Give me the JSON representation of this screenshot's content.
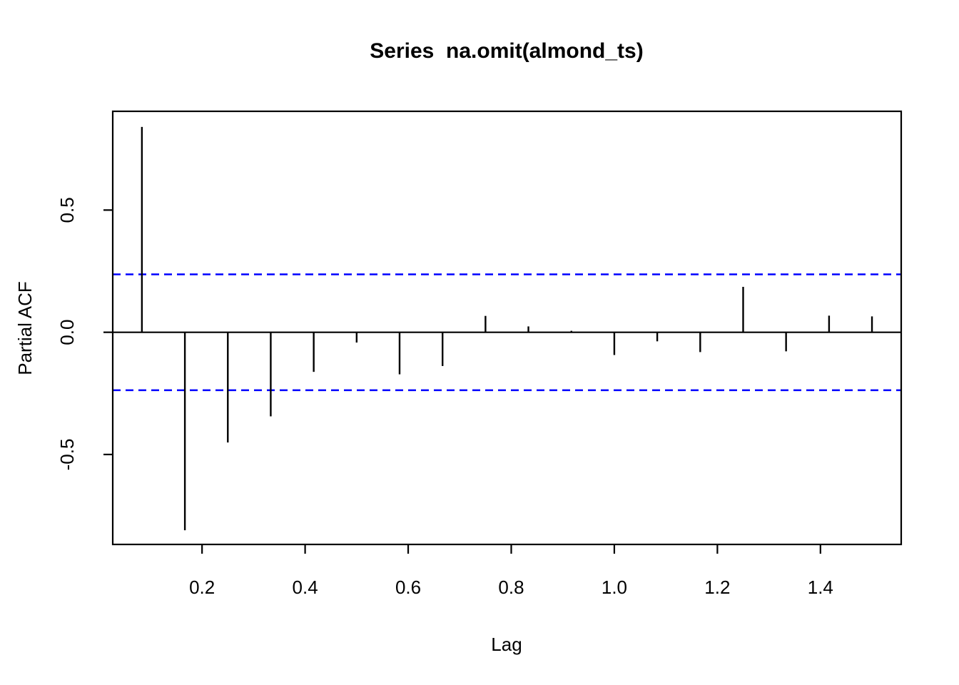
{
  "chart_data": {
    "type": "bar",
    "subtype": "pacf-stem",
    "title": "Series  na.omit(almond_ts)",
    "xlabel": "Lag",
    "ylabel": "Partial ACF",
    "x": [
      0.0833,
      0.1667,
      0.25,
      0.3333,
      0.4167,
      0.5,
      0.5833,
      0.6667,
      0.75,
      0.8333,
      0.9167,
      1.0,
      1.0833,
      1.1667,
      1.25,
      1.3333,
      1.4167,
      1.5
    ],
    "values": [
      0.84,
      -0.81,
      -0.451,
      -0.344,
      -0.162,
      -0.042,
      -0.172,
      -0.138,
      0.067,
      0.024,
      0.006,
      -0.093,
      -0.037,
      -0.081,
      0.186,
      -0.078,
      0.068,
      0.065
    ],
    "confidence_level": 0.237,
    "confidence_style": "dashed",
    "xlim": [
      0.0267,
      1.5567
    ],
    "ylim": [
      -0.868,
      0.904
    ],
    "xticks": {
      "values": [
        0.2,
        0.4,
        0.6,
        0.8,
        1.0,
        1.2,
        1.4
      ],
      "labels": [
        "0.2",
        "0.4",
        "0.6",
        "0.8",
        "1.0",
        "1.2",
        "1.4"
      ]
    },
    "yticks": {
      "values": [
        -0.5,
        0.0,
        0.5
      ],
      "labels": [
        "-0.5",
        "0.0",
        "0.5"
      ]
    },
    "grid": false,
    "legend": "none",
    "colors": {
      "spike": "#000000",
      "box": "#000000",
      "zero_line": "#000000",
      "confidence_band": "#0000ff",
      "background": "#ffffff",
      "text": "#000000"
    }
  }
}
